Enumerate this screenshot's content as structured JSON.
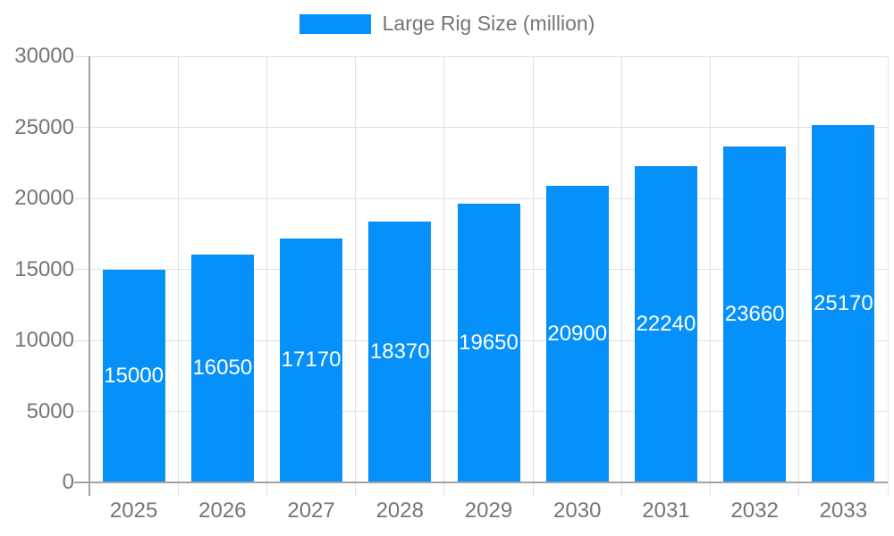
{
  "legend": {
    "label": "Large Rig Size (million)"
  },
  "chart_data": {
    "type": "bar",
    "title": "",
    "xlabel": "",
    "ylabel": "",
    "categories": [
      "2025",
      "2026",
      "2027",
      "2028",
      "2029",
      "2030",
      "2031",
      "2032",
      "2033"
    ],
    "series": [
      {
        "name": "Large Rig Size (million)",
        "values": [
          15000,
          16050,
          17170,
          18370,
          19650,
          20900,
          22240,
          23660,
          25170
        ]
      }
    ],
    "ylim": [
      0,
      30000
    ],
    "yticks": [
      0,
      5000,
      10000,
      15000,
      20000,
      25000,
      30000
    ],
    "grid": true,
    "legend_position": "top-center",
    "value_label_position": "inside-center"
  },
  "colors": {
    "bar": "#0691fa",
    "gridline": "#e0e0e0",
    "axis_line": "#a3a3a3",
    "axis_text": "#757575",
    "value_label_text": "#ffffff",
    "background": "#ffffff"
  }
}
